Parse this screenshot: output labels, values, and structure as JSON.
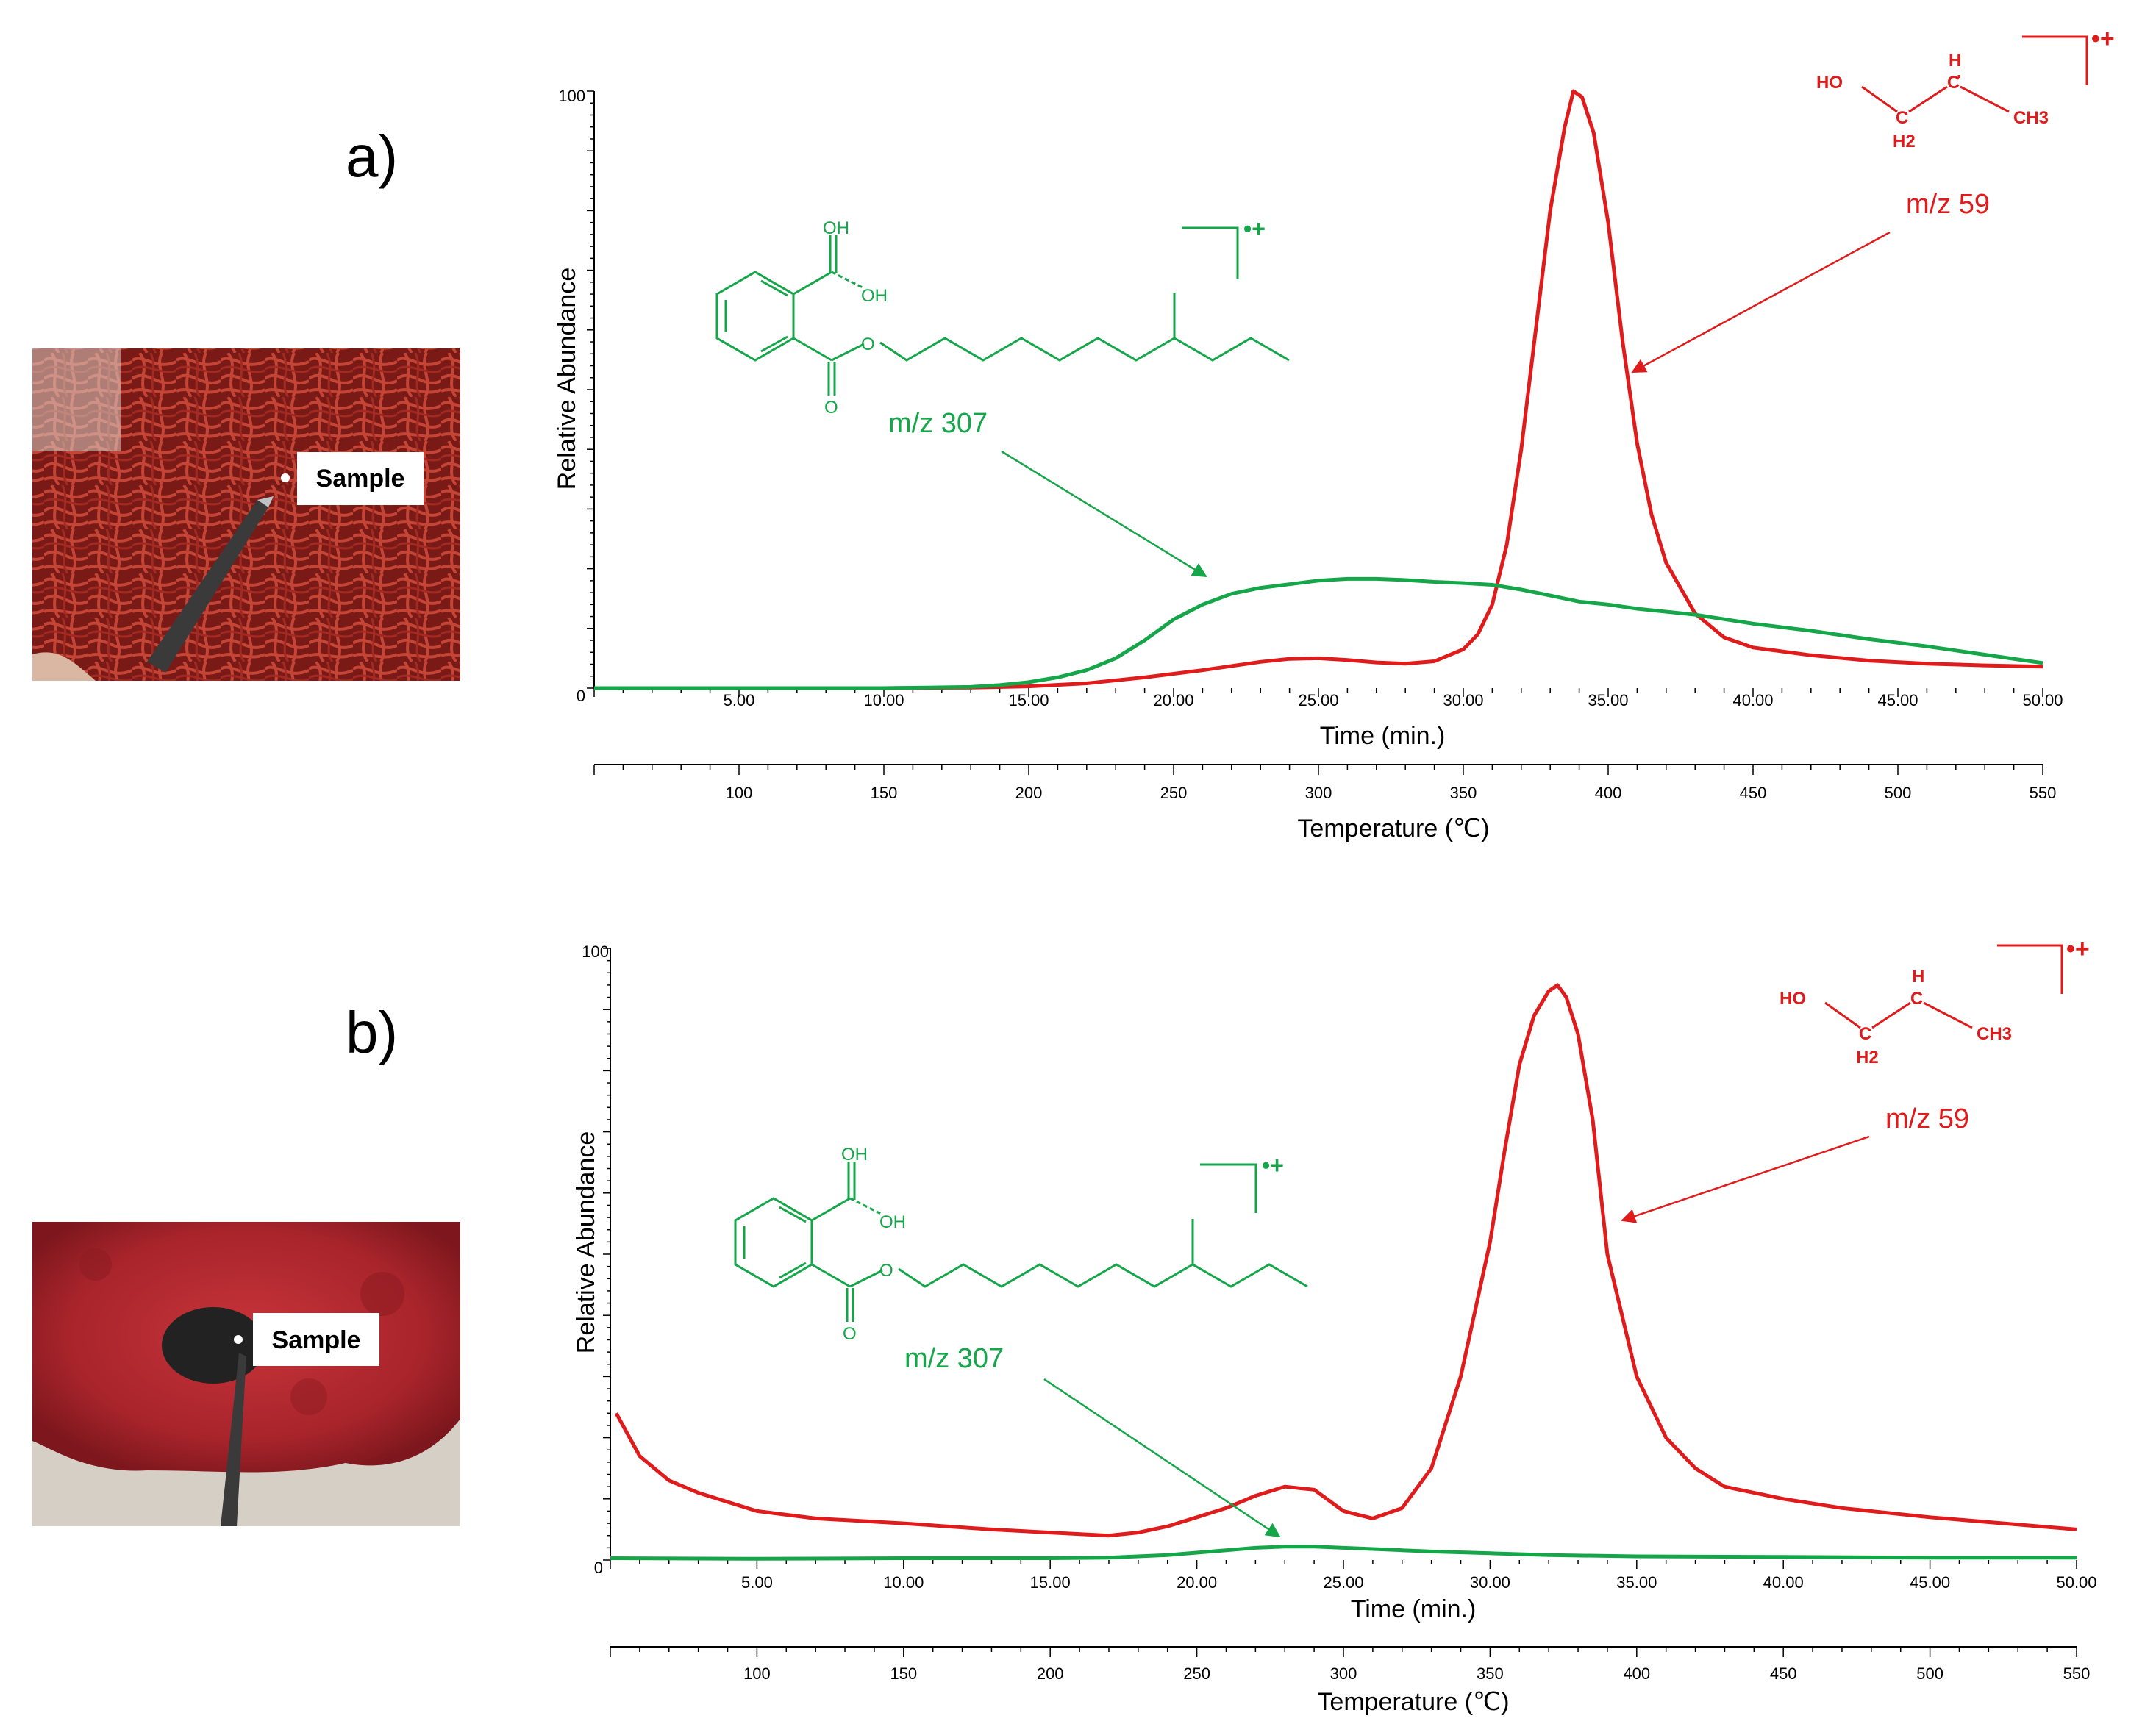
{
  "colors": {
    "red": "#e01b1b",
    "green": "#16a64a",
    "axis": "#000000"
  },
  "panels": [
    {
      "label": "a)",
      "sample_label": "Sample"
    },
    {
      "label": "b)",
      "sample_label": "Sample"
    }
  ],
  "chart_data": [
    {
      "type": "line",
      "panel": "a)",
      "title": "",
      "xlabel": "Time (min.)",
      "x2label": "Temperature (℃)",
      "ylabel": "Relative Abundance",
      "ylim": [
        0,
        100
      ],
      "xlim": [
        0,
        50
      ],
      "y_tick_labels": [
        "0",
        "100"
      ],
      "x_ticks": [
        5,
        10,
        15,
        20,
        25,
        30,
        35,
        40,
        45,
        50
      ],
      "x_tick_labels": [
        "5.00",
        "10.00",
        "15.00",
        "20.00",
        "25.00",
        "30.00",
        "35.00",
        "40.00",
        "45.00",
        "50.00"
      ],
      "x2_ticks": [
        100,
        150,
        200,
        250,
        300,
        350,
        400,
        450,
        500,
        550
      ],
      "x2lim": [
        50,
        550
      ],
      "series": [
        {
          "name": "m/z 59",
          "color": "#e01b1b",
          "x": [
            0,
            5,
            10,
            13,
            15,
            17,
            19,
            21,
            23,
            24,
            25,
            26,
            27,
            28,
            29,
            30,
            30.5,
            31,
            31.5,
            32,
            32.5,
            33,
            33.5,
            33.8,
            34.1,
            34.5,
            35,
            35.5,
            36,
            36.5,
            37,
            38,
            39,
            40,
            42,
            44,
            46,
            48,
            50
          ],
          "y": [
            0,
            0,
            0,
            0.1,
            0.3,
            0.8,
            1.8,
            3,
            4.4,
            4.9,
            5,
            4.7,
            4.3,
            4.1,
            4.5,
            6.5,
            9,
            14,
            24,
            40,
            60,
            80,
            94,
            100,
            99,
            93,
            78,
            58,
            41,
            29,
            21,
            12.5,
            8.5,
            6.8,
            5.5,
            4.6,
            4.1,
            3.8,
            3.6
          ]
        },
        {
          "name": "m/z 307",
          "color": "#16a64a",
          "x": [
            0,
            10,
            13,
            14,
            15,
            16,
            17,
            18,
            19,
            20,
            21,
            22,
            23,
            24,
            25,
            26,
            27,
            28,
            29,
            30,
            31,
            32,
            33,
            34,
            35,
            36,
            38,
            40,
            42,
            44,
            46,
            48,
            50
          ],
          "y": [
            0,
            0,
            0.2,
            0.5,
            1,
            1.8,
            3,
            5,
            8,
            11.5,
            14,
            15.8,
            16.8,
            17.4,
            18,
            18.3,
            18.3,
            18.1,
            17.8,
            17.6,
            17.3,
            16.5,
            15.5,
            14.5,
            14,
            13.3,
            12.3,
            10.8,
            9.6,
            8.2,
            7,
            5.6,
            4.2
          ]
        }
      ],
      "annotations": [
        {
          "text": "m/z 59",
          "series": "m/z 59"
        },
        {
          "text": "m/z 307",
          "series": "m/z 307"
        }
      ]
    },
    {
      "type": "line",
      "panel": "b)",
      "title": "",
      "xlabel": "Time (min.)",
      "x2label": "Temperature (℃)",
      "ylabel": "Relative Abundance",
      "ylim": [
        0,
        100
      ],
      "xlim": [
        0,
        50
      ],
      "y_tick_labels": [
        "0",
        "100"
      ],
      "x_ticks": [
        5,
        10,
        15,
        20,
        25,
        30,
        35,
        40,
        45,
        50
      ],
      "x_tick_labels": [
        "5.00",
        "10.00",
        "15.00",
        "20.00",
        "25.00",
        "30.00",
        "35.00",
        "40.00",
        "45.00",
        "50.00"
      ],
      "x2_ticks": [
        100,
        150,
        200,
        250,
        300,
        350,
        400,
        450,
        500,
        550
      ],
      "x2lim": [
        50,
        550
      ],
      "series": [
        {
          "name": "m/z 59",
          "color": "#e01b1b",
          "x": [
            0.2,
            1,
            2,
            3,
            4,
            5,
            7,
            10,
            13,
            15,
            17,
            18,
            19,
            20,
            21,
            22,
            23,
            24,
            25,
            26,
            27,
            28,
            29,
            30,
            30.5,
            31,
            31.5,
            32,
            32.3,
            32.6,
            33,
            33.5,
            34,
            35,
            36,
            37,
            38,
            40,
            42,
            45,
            48,
            50
          ],
          "y": [
            24,
            17,
            13,
            11,
            9.5,
            8,
            6.8,
            6,
            5,
            4.5,
            4,
            4.5,
            5.5,
            7,
            8.5,
            10.5,
            12,
            11.5,
            8,
            6.8,
            8.5,
            15,
            30,
            52,
            67,
            81,
            89,
            93,
            94,
            92,
            86,
            72,
            50,
            30,
            20,
            15,
            12,
            10,
            8.5,
            7,
            5.8,
            5
          ]
        },
        {
          "name": "m/z 307",
          "color": "#16a64a",
          "x": [
            0,
            5,
            10,
            15,
            17,
            19,
            20,
            21,
            22,
            23,
            24,
            25,
            26,
            27,
            28,
            30,
            32,
            35,
            40,
            45,
            50
          ],
          "y": [
            0.3,
            0.2,
            0.3,
            0.3,
            0.4,
            0.8,
            1.2,
            1.6,
            2,
            2.2,
            2.2,
            2,
            1.8,
            1.6,
            1.4,
            1.1,
            0.8,
            0.6,
            0.5,
            0.4,
            0.4
          ]
        }
      ],
      "annotations": [
        {
          "text": "m/z 59",
          "series": "m/z 59"
        },
        {
          "text": "m/z 307",
          "series": "m/z 307"
        }
      ]
    }
  ],
  "molecules": {
    "green": {
      "labels": [
        "OH",
        "OH",
        "O",
        "O"
      ],
      "charge": "•+"
    },
    "red": {
      "labels": [
        "HO",
        "C",
        "H2",
        "H",
        "C",
        "CH3"
      ],
      "charge": "•+"
    }
  }
}
